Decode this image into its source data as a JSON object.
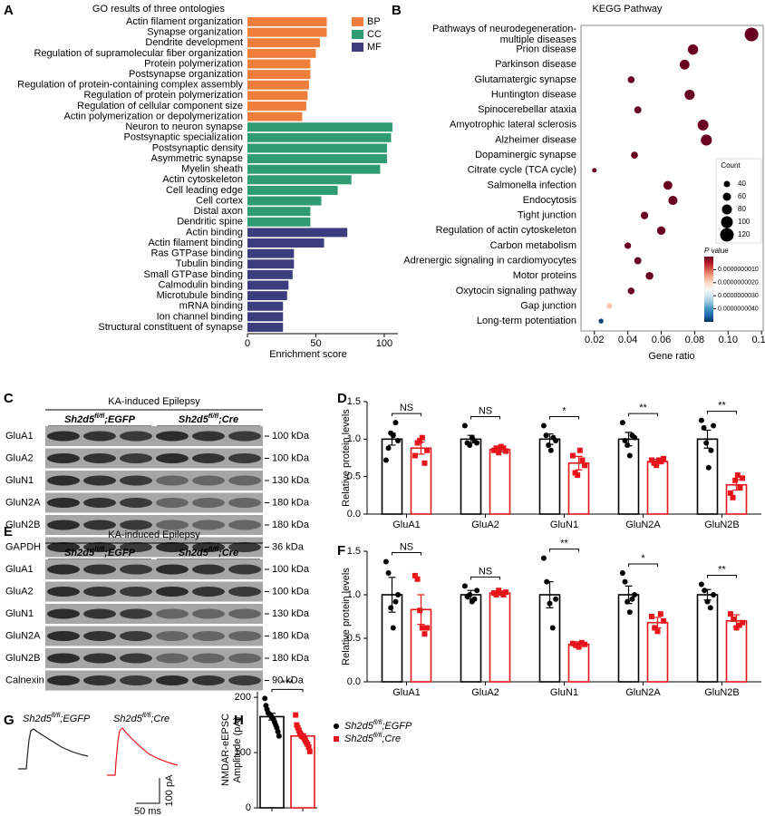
{
  "chart_data": [
    {
      "panel": "A",
      "type": "hbar",
      "title": "GO results of three ontologies",
      "xlabel": "Enrichment score",
      "xlim": [
        0,
        110
      ],
      "xticks": [
        0,
        50,
        100
      ],
      "legend": "upper right",
      "categories": [
        "Actin filament organization",
        "Synapse organization",
        "Dendrite development",
        "Regulation of supramolecular fiber organization",
        "Protein polymerization",
        "Postsynapse organization",
        "Regulation of protein-containing complex assembly",
        "Regulation of protein polymerization",
        "Regulation of cellular component size",
        "Actin polymerization or depolymerization",
        "Neuron to neuron synapse",
        "Postsynaptic specialization",
        "Postsynaptic density",
        "Asymmetric synapse",
        "Myelin sheath",
        "Actin cytoskeleton",
        "Cell leading edge",
        "Cell cortex",
        "Distal axon",
        "Dendritic spine",
        "Actin binding",
        "Actin filament binding",
        "Ras GTPase binding",
        "Tubulin binding",
        "Small GTPase binding",
        "Calmodulin binding",
        "Microtubule binding",
        "mRNA binding",
        "Ion channel binding",
        "Structural constituent of synapse"
      ],
      "label_colors": [
        "#000000",
        "#c8102e",
        "#000000",
        "#000000",
        "#000000",
        "#000000",
        "#000000",
        "#000000",
        "#000000",
        "#000000",
        "#c8102e",
        "#000000",
        "#c8102e",
        "#c8102e",
        "#000000",
        "#000000",
        "#000000",
        "#000000",
        "#000000",
        "#000000",
        "#000000",
        "#000000",
        "#000000",
        "#000000",
        "#000000",
        "#000000",
        "#000000",
        "#000000",
        "#000000",
        "#c8102e"
      ],
      "series": [
        {
          "name": "BP",
          "color": "#ef7d3c",
          "values": [
            58,
            58,
            53,
            50,
            46,
            46,
            45,
            44,
            43,
            40,
            null,
            null,
            null,
            null,
            null,
            null,
            null,
            null,
            null,
            null,
            null,
            null,
            null,
            null,
            null,
            null,
            null,
            null,
            null,
            null
          ]
        },
        {
          "name": "CC",
          "color": "#2e9b72",
          "values": [
            null,
            null,
            null,
            null,
            null,
            null,
            null,
            null,
            null,
            null,
            106,
            105,
            102,
            102,
            97,
            76,
            66,
            54,
            46,
            46,
            null,
            null,
            null,
            null,
            null,
            null,
            null,
            null,
            null,
            null
          ]
        },
        {
          "name": "MF",
          "color": "#3b3d7e",
          "values": [
            null,
            null,
            null,
            null,
            null,
            null,
            null,
            null,
            null,
            null,
            null,
            null,
            null,
            null,
            null,
            null,
            null,
            null,
            null,
            null,
            73,
            56,
            34,
            34,
            33,
            30,
            29,
            26,
            26,
            26
          ]
        }
      ]
    },
    {
      "panel": "B",
      "type": "dot",
      "title": "KEGG Pathway",
      "xlabel": "Gene ratio",
      "xlim": [
        0.012,
        0.121
      ],
      "xticks": [
        0.02,
        0.04,
        0.06,
        0.08,
        {
          "value": 0.1,
          "label": "0.10"
        },
        0.12
      ],
      "categories": [
        "Pathways of neurodegeneration-\nmultiple diseases",
        "Prion disease",
        "Parkinson disease",
        "Glutamatergic synapse",
        "Huntington disease",
        "Spinocerebellar ataxia",
        "Amyotrophic lateral sclerosis",
        "Alzheimer disease",
        "Dopaminergic synapse",
        "Citrate cycle (TCA cycle)",
        "Salmonella infection",
        "Endocytosis",
        "Tight junction",
        "Regulation of actin cytoskeleton",
        "Carbon metabolism",
        "Adrenergic signaling in cardiomyocytes",
        "Motor proteins",
        "Oxytocin signaling pathway",
        "Gap junction",
        "Long-term potentiation"
      ],
      "label_colors": [
        "#000000",
        "#000000",
        "#000000",
        "#c8102e",
        "#000000",
        "#000000",
        "#000000",
        "#000000",
        "#000000",
        "#000000",
        "#000000",
        "#000000",
        "#000000",
        "#000000",
        "#000000",
        "#000000",
        "#000000",
        "#000000",
        "#000000",
        "#000000"
      ],
      "x": [
        0.114,
        0.079,
        0.074,
        0.042,
        0.077,
        0.046,
        0.085,
        0.087,
        0.044,
        0.02,
        0.064,
        0.067,
        0.05,
        0.06,
        0.04,
        0.046,
        0.053,
        0.042,
        0.029,
        0.024
      ],
      "sizes": [
        121,
        84,
        78,
        45,
        82,
        49,
        90,
        92,
        47,
        21,
        68,
        71,
        53,
        64,
        42,
        49,
        56,
        45,
        31,
        25
      ],
      "pvalues": [
        1e-11,
        1e-11,
        1e-11,
        1e-11,
        1e-11,
        1e-11,
        1e-11,
        1e-11,
        1e-11,
        1e-11,
        1e-11,
        1e-11,
        1e-11,
        1e-11,
        1e-11,
        1e-11,
        1e-11,
        1e-11,
        1.8e-09,
        4.8e-09
      ],
      "size_legend_title": "Count",
      "size_legend": [
        40,
        60,
        80,
        100,
        120
      ],
      "colorbar_title": "P value",
      "colorbar_lim": [
        0,
        5e-09
      ],
      "colorbar_ticks": [
        {
          "value": 1e-09,
          "label": "0.0000000010"
        },
        {
          "value": 2e-09,
          "label": "0.0000000020"
        },
        {
          "value": 3e-09,
          "label": "0.0000000030"
        },
        {
          "value": 4e-09,
          "label": "0.0000000040"
        }
      ],
      "colormap": [
        "#67001f",
        "#b2182b",
        "#d6604d",
        "#f4a582",
        "#fddbc7",
        "#f7f7f7",
        "#d1e5f0",
        "#92c5de",
        "#4393c3",
        "#2166ac",
        "#053061"
      ]
    },
    {
      "panel": "D",
      "type": "bar_dot",
      "ylabel": "Relative protein levels",
      "ylim": [
        0,
        1.5
      ],
      "yticks": [
        {
          "value": 0,
          "label": "0.0"
        },
        0.5,
        {
          "value": 1,
          "label": "1.0"
        },
        1.5
      ],
      "categories": [
        "GluA1",
        "GluA2",
        "GluN1",
        "GluN2A",
        "GluN2B"
      ],
      "significance": [
        "NS",
        "NS",
        "*",
        "**",
        "**"
      ],
      "series": [
        {
          "color": "#000000",
          "marker": "circle",
          "values": [
            1.0,
            1.0,
            1.0,
            1.0,
            1.0
          ],
          "errors": [
            0.08,
            0.05,
            0.07,
            0.09,
            0.12
          ],
          "points": [
            [
              0.72,
              0.88,
              1.08,
              1.05,
              1.22,
              0.98
            ],
            [
              1.18,
              0.95,
              0.92,
              1.02,
              0.98,
              0.95
            ],
            [
              1.18,
              1.05,
              0.92,
              0.85,
              1.02,
              0.98
            ],
            [
              1.22,
              0.98,
              0.92,
              0.78,
              1.05,
              1.02
            ],
            [
              1.25,
              1.15,
              0.95,
              0.62,
              0.85,
              1.18
            ]
          ]
        },
        {
          "color": "#e8141b",
          "marker": "square",
          "values": [
            0.88,
            0.86,
            0.68,
            0.7,
            0.39
          ],
          "errors": [
            0.08,
            0.03,
            0.09,
            0.03,
            0.07
          ],
          "points": [
            [
              0.78,
              0.95,
              0.98,
              1.02,
              0.68,
              0.85
            ],
            [
              0.85,
              0.88,
              0.82,
              0.9,
              0.88,
              0.84
            ],
            [
              0.78,
              0.55,
              0.52,
              0.85,
              0.72,
              0.65
            ],
            [
              0.72,
              0.68,
              0.65,
              0.72,
              0.7,
              0.74
            ],
            [
              0.28,
              0.22,
              0.45,
              0.52,
              0.35,
              0.48
            ]
          ]
        }
      ]
    },
    {
      "panel": "F",
      "type": "bar_dot",
      "ylabel": "Relative protein levels",
      "ylim": [
        0,
        1.5
      ],
      "yticks": [
        {
          "value": 0,
          "label": "0.0"
        },
        0.5,
        {
          "value": 1,
          "label": "1.0"
        },
        1.5
      ],
      "categories": [
        "GluA1",
        "GluA2",
        "GluN1",
        "GluN2A",
        "GluN2B"
      ],
      "significance": [
        "NS",
        "NS",
        "**",
        "*",
        "**"
      ],
      "series": [
        {
          "color": "#000000",
          "marker": "circle",
          "values": [
            1.0,
            1.0,
            1.0,
            1.0,
            1.0
          ],
          "errors": [
            0.2,
            0.05,
            0.15,
            0.1,
            0.06
          ],
          "points": [
            [
              1.38,
              1.25,
              0.85,
              0.62,
              0.92,
              1.0
            ],
            [
              1.1,
              0.98,
              1.0,
              0.92,
              0.95,
              1.05
            ],
            [
              1.42,
              1.15,
              0.9,
              0.62,
              0.95
            ],
            [
              1.25,
              1.15,
              0.92,
              0.8,
              0.95,
              1.0
            ],
            [
              1.12,
              1.05,
              0.92,
              0.85,
              1.0
            ]
          ]
        },
        {
          "color": "#e8141b",
          "marker": "square",
          "values": [
            0.83,
            1.02,
            0.43,
            0.68,
            0.7
          ],
          "errors": [
            0.17,
            0.02,
            0.03,
            0.06,
            0.07
          ],
          "points": [
            [
              1.22,
              1.18,
              0.82,
              0.62,
              0.55,
              0.62
            ],
            [
              1.02,
              1.0,
              1.05,
              1.02,
              1.0,
              1.03
            ],
            [
              0.44,
              0.42,
              0.4,
              0.45,
              0.43
            ],
            [
              0.75,
              0.62,
              0.58,
              0.78,
              0.7
            ],
            [
              0.78,
              0.72,
              0.62,
              0.65,
              0.68
            ]
          ]
        }
      ]
    },
    {
      "panel": "H",
      "type": "bar_dot",
      "ylabel": [
        "NMDAR-eEPSC",
        "Amplitude (pA)"
      ],
      "ylim": [
        0,
        210
      ],
      "yticks": [
        0,
        100,
        200
      ],
      "legend": "right",
      "categories": [
        null
      ],
      "significance": [
        "***"
      ],
      "series": [
        {
          "name": {
            "gene": "Sh2d5",
            "superscript": "fl/fl",
            "suffix": ";EGFP"
          },
          "color": "#000000",
          "marker": "circle",
          "values": [
            165
          ],
          "errors": [
            6
          ],
          "points": [
            [
              198,
              185,
              178,
              172,
              170,
              168,
              165,
              162,
              160,
              155,
              150,
              145,
              138,
              130
            ]
          ]
        },
        {
          "name": {
            "gene": "Sh2d5",
            "superscript": "fl/fl",
            "suffix": ";Cre"
          },
          "color": "#e8141b",
          "marker": "square",
          "values": [
            130
          ],
          "errors": [
            4
          ],
          "points": [
            [
              168,
              150,
              145,
              140,
              135,
              132,
              130,
              128,
              125,
              122,
              118,
              115,
              110,
              102
            ]
          ]
        }
      ]
    }
  ],
  "blots": [
    {
      "panel": "C",
      "condition": "KA-induced Epilepsy",
      "groups": [
        {
          "gene": "Sh2d5",
          "superscript": "fl/fl",
          "suffix": ";EGFP"
        },
        {
          "gene": "Sh2d5",
          "superscript": "fl/fl",
          "suffix": ";Cre"
        }
      ],
      "rows": [
        {
          "protein": "GluA1",
          "size": "100 kDa"
        },
        {
          "protein": "GluA2",
          "size": "100 kDa"
        },
        {
          "protein": "GluN1",
          "size": "130 kDa"
        },
        {
          "protein": "GluN2A",
          "size": "180 kDa"
        },
        {
          "protein": "GluN2B",
          "size": "180 kDa"
        },
        {
          "protein": "GAPDH",
          "size": "36 kDa"
        }
      ]
    },
    {
      "panel": "E",
      "condition": "KA-induced Epilepsy",
      "groups": [
        {
          "gene": "Sh2d5",
          "superscript": "fl/fl",
          "suffix": ";EGFP"
        },
        {
          "gene": "Sh2d5",
          "superscript": "fl/fl",
          "suffix": ";Cre"
        }
      ],
      "rows": [
        {
          "protein": "GluA1",
          "size": "100 kDa"
        },
        {
          "protein": "GluA2",
          "size": "100 kDa"
        },
        {
          "protein": "GluN1",
          "size": "130 kDa"
        },
        {
          "protein": "GluN2A",
          "size": "180 kDa"
        },
        {
          "protein": "GluN2B",
          "size": "180 kDa"
        },
        {
          "protein": "Calnexin",
          "size": "90 kDa"
        }
      ]
    }
  ],
  "traces": {
    "panel": "G",
    "labels": [
      {
        "gene": "Sh2d5",
        "superscript": "fl/fl",
        "suffix": ";EGFP"
      },
      {
        "gene": "Sh2d5",
        "superscript": "fl/fl",
        "suffix": ";Cre"
      }
    ],
    "scale_y": "100 pA",
    "scale_x": "50 ms"
  }
}
